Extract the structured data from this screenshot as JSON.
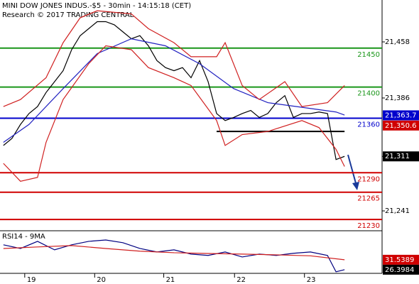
{
  "chart_data": {
    "type": "line",
    "title": "MINI DOW JONES INDUS.-$5 - 30min - 14:15:18 (CET)",
    "subtitle": "Research © 2017 TRADING CENTRAL",
    "xlim": [
      -0.4,
      44.4
    ],
    "xticks": [
      {
        "value": 2.5,
        "label": "19"
      },
      {
        "value": 10.7,
        "label": "20"
      },
      {
        "value": 18.8,
        "label": "21"
      },
      {
        "value": 27.1,
        "label": "22"
      },
      {
        "value": 35.3,
        "label": "23"
      }
    ],
    "ylim": [
      21215.5,
      21511.8
    ],
    "yticks": [
      {
        "value": 21458,
        "label": "21,458"
      },
      {
        "value": 21386,
        "label": "21,386"
      },
      {
        "value": 21311,
        "label": "21,311"
      },
      {
        "value": 21241,
        "label": "21,241"
      }
    ],
    "series": [
      {
        "color": "#000000",
        "x": [
          0,
          1,
          2,
          3,
          4,
          5,
          6,
          7,
          8,
          9,
          10,
          11,
          12,
          13,
          14,
          15,
          16,
          17,
          18,
          19,
          20,
          21,
          22,
          23,
          24,
          25,
          26,
          27,
          28,
          29,
          30,
          31,
          32,
          33,
          34,
          35,
          36,
          37,
          38,
          39,
          40
        ],
        "values": [
          21325,
          21334,
          21352,
          21366,
          21375,
          21393,
          21407,
          21421,
          21448,
          21466,
          21475,
          21484,
          21484,
          21480,
          21471,
          21462,
          21466,
          21453,
          21434,
          21425,
          21421,
          21425,
          21412,
          21434,
          21407,
          21366,
          21357,
          21361,
          21366,
          21370,
          21361,
          21366,
          21380,
          21389,
          21361,
          21366,
          21366,
          21368,
          21366,
          21307,
          21311
        ]
      },
      {
        "color": "#2020c0",
        "x": [
          0,
          3,
          7,
          11,
          15,
          19,
          23,
          27,
          31,
          35,
          39,
          40
        ],
        "values": [
          21329,
          21352,
          21398,
          21443,
          21462,
          21453,
          21430,
          21398,
          21380,
          21374,
          21368,
          21364
        ]
      },
      {
        "color": "#d02020",
        "x": [
          0,
          2,
          5,
          7,
          9,
          11,
          15,
          17,
          20,
          22,
          25,
          26,
          28,
          30,
          33,
          35,
          38,
          40
        ],
        "values": [
          21375,
          21384,
          21412,
          21457,
          21489,
          21498,
          21494,
          21475,
          21457,
          21439,
          21439,
          21457,
          21402,
          21384,
          21407,
          21375,
          21380,
          21402
        ]
      },
      {
        "color": "#d02020",
        "x": [
          0,
          2,
          4,
          5,
          7,
          10,
          12,
          15,
          17,
          20,
          22,
          25,
          26,
          28,
          31,
          35,
          37,
          39,
          40
        ],
        "values": [
          21302,
          21279,
          21284,
          21329,
          21384,
          21430,
          21453,
          21448,
          21425,
          21412,
          21402,
          21357,
          21325,
          21339,
          21343,
          21357,
          21348,
          21320,
          21298
        ]
      }
    ],
    "levels": [
      {
        "value": 21450,
        "color": "#1a961a"
      },
      {
        "value": 21400,
        "color": "#1a961a"
      },
      {
        "value": 21360,
        "color": "#0000cc"
      },
      {
        "value": 21290,
        "color": "#d00000"
      },
      {
        "value": 21265,
        "color": "#d00000"
      },
      {
        "value": 21230,
        "color": "#d00000"
      }
    ],
    "support": {
      "value": 21343,
      "x": [
        25,
        40
      ]
    },
    "price_labels": [
      {
        "value": 21363.7,
        "label": "21,363.7",
        "color": "#0000cc"
      },
      {
        "value": 21350.6,
        "label": "21,350.6",
        "color": "#d00000"
      },
      {
        "value": 21311,
        "label": "21,311",
        "color": "#000000"
      }
    ],
    "indicator": {
      "title": "RSI14 - 9MA",
      "ylim": [
        24.5,
        46.6
      ],
      "series": [
        {
          "color": "#000080",
          "x": [
            0,
            2,
            4,
            6,
            8,
            10,
            12,
            14,
            16,
            18,
            20,
            22,
            24,
            26,
            28,
            30,
            32,
            34,
            36,
            38,
            39,
            40
          ],
          "values": [
            39.3,
            37.4,
            41.1,
            36.7,
            39.3,
            41.1,
            41.8,
            40.4,
            37.4,
            35.6,
            36.7,
            34.5,
            33.8,
            35.6,
            33.0,
            34.5,
            33.8,
            34.9,
            35.6,
            33.8,
            25.3,
            26.3984
          ]
        },
        {
          "color": "#d02020",
          "x": [
            0,
            4,
            8,
            12,
            16,
            20,
            24,
            28,
            32,
            36,
            40
          ],
          "values": [
            37.4,
            38.2,
            38.9,
            37.4,
            36.0,
            35.2,
            34.8,
            34.5,
            34.1,
            33.6,
            31.5389
          ]
        }
      ],
      "value_labels": [
        {
          "value": 31.5389,
          "label": "31.5389",
          "color": "#d00000"
        },
        {
          "value": 26.3984,
          "label": "26.3984",
          "color": "#000000"
        }
      ]
    }
  }
}
